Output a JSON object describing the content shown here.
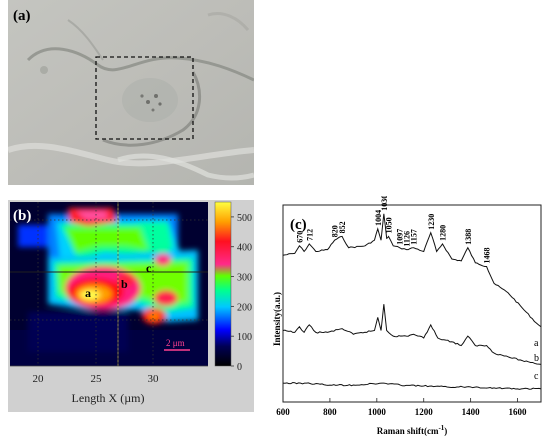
{
  "panel_a": {
    "label": "(a)"
  },
  "panel_b": {
    "label": "(b)",
    "xlabel": "Length X (µm)",
    "x_ticks": [
      "20",
      "25",
      "30"
    ],
    "colorbar_ticks": [
      "500",
      "400",
      "300",
      "200",
      "100",
      "0"
    ],
    "points": [
      "a",
      "b",
      "c"
    ],
    "scale_bar": "2 μm"
  },
  "panel_c": {
    "label": "(c)",
    "xlabel": "Raman shift(cm",
    "xlabel_sup": "-1",
    "xlabel_end": ")",
    "ylabel": "Intensity(a.u.)",
    "x_ticks": [
      "600",
      "800",
      "1000",
      "1200",
      "1400",
      "1600"
    ],
    "peaks": [
      "670",
      "712",
      "820",
      "852",
      "1004",
      "1030",
      "1050",
      "1097",
      "1126",
      "1157",
      "1230",
      "1280",
      "1388",
      "1468"
    ],
    "series_labels": [
      "a",
      "b",
      "c"
    ]
  },
  "chart_data": [
    {
      "type": "heatmap",
      "title": "",
      "xlabel": "Length X (µm)",
      "ylabel": "",
      "xlim": [
        17,
        34
      ],
      "colorbar_range": [
        0,
        550
      ],
      "x_ticks": [
        20,
        25,
        30
      ],
      "colorbar_ticks": [
        0,
        100,
        200,
        300,
        400,
        500
      ],
      "labeled_points": [
        "a",
        "b",
        "c"
      ]
    },
    {
      "type": "line",
      "title": "",
      "xlabel": "Raman shift(cm-1)",
      "ylabel": "Intensity(a.u.)",
      "xlim": [
        600,
        1700
      ],
      "x_ticks": [
        600,
        800,
        1000,
        1200,
        1400,
        1600
      ],
      "peak_labels": [
        670,
        712,
        820,
        852,
        1004,
        1030,
        1050,
        1097,
        1126,
        1157,
        1230,
        1280,
        1388,
        1468
      ],
      "series": [
        {
          "name": "a",
          "x": [
            600,
            650,
            670,
            690,
            712,
            740,
            790,
            820,
            852,
            880,
            950,
            990,
            1004,
            1018,
            1030,
            1042,
            1050,
            1070,
            1097,
            1126,
            1157,
            1200,
            1230,
            1255,
            1280,
            1320,
            1360,
            1388,
            1420,
            1468,
            1500,
            1560,
            1620,
            1680,
            1700
          ],
          "y": [
            0.78,
            0.79,
            0.83,
            0.8,
            0.84,
            0.8,
            0.81,
            0.86,
            0.88,
            0.82,
            0.83,
            0.86,
            0.92,
            0.86,
            1.0,
            0.87,
            0.88,
            0.83,
            0.82,
            0.81,
            0.82,
            0.8,
            0.9,
            0.8,
            0.84,
            0.76,
            0.75,
            0.82,
            0.74,
            0.72,
            0.63,
            0.58,
            0.5,
            0.42,
            0.4
          ]
        },
        {
          "name": "b",
          "x": [
            600,
            650,
            670,
            690,
            712,
            740,
            790,
            852,
            900,
            990,
            1004,
            1018,
            1030,
            1042,
            1070,
            1126,
            1157,
            1200,
            1230,
            1260,
            1320,
            1360,
            1388,
            1420,
            1468,
            1500,
            1560,
            1620,
            1700
          ],
          "y": [
            0.38,
            0.37,
            0.4,
            0.37,
            0.41,
            0.37,
            0.37,
            0.39,
            0.36,
            0.38,
            0.45,
            0.38,
            0.52,
            0.38,
            0.35,
            0.35,
            0.36,
            0.34,
            0.41,
            0.34,
            0.32,
            0.3,
            0.35,
            0.3,
            0.3,
            0.26,
            0.24,
            0.22,
            0.2
          ]
        },
        {
          "name": "c",
          "x": [
            600,
            700,
            800,
            900,
            1030,
            1100,
            1200,
            1300,
            1400,
            1500,
            1600,
            1700
          ],
          "y": [
            0.1,
            0.1,
            0.09,
            0.09,
            0.1,
            0.09,
            0.085,
            0.08,
            0.08,
            0.075,
            0.07,
            0.07
          ]
        }
      ]
    }
  ]
}
